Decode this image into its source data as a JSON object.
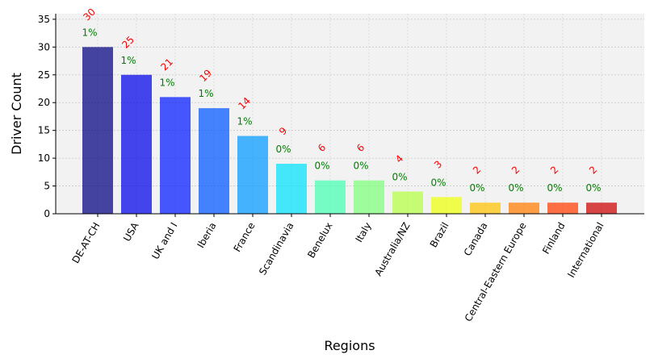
{
  "chart_data": {
    "type": "bar",
    "title": "",
    "xlabel": "Regions",
    "ylabel": "Driver Count",
    "ylim": [
      0,
      36
    ],
    "yticks": [
      0,
      5,
      10,
      15,
      20,
      25,
      30,
      35
    ],
    "grid": true,
    "legend": "none",
    "categories": [
      "DE-AT-CH",
      "USA",
      "UK and I",
      "Iberia",
      "France",
      "Scandinavia",
      "Benelux",
      "Italy",
      "Australia/NZ",
      "Brazil",
      "Canada",
      "Central-Eastern Europe",
      "Finland",
      "International"
    ],
    "values": [
      30,
      25,
      21,
      19,
      14,
      9,
      6,
      6,
      4,
      3,
      2,
      2,
      2,
      2
    ],
    "value_labels": [
      "30",
      "25",
      "21",
      "19",
      "14",
      "9",
      "6",
      "6",
      "4",
      "3",
      "2",
      "2",
      "2",
      "2"
    ],
    "percent_labels": [
      "1%",
      "1%",
      "1%",
      "1%",
      "1%",
      "0%",
      "0%",
      "0%",
      "0%",
      "0%",
      "0%",
      "0%",
      "0%",
      "0%"
    ],
    "bar_colors": [
      "#00007f",
      "#0000ea",
      "#0019ff",
      "#0055ff",
      "#0099ff",
      "#00e0fb",
      "#44ffb2",
      "#7dff7a",
      "#b3ff43",
      "#eeff08",
      "#ffc200",
      "#ff7c00",
      "#ff3a00",
      "#ca0000"
    ],
    "bar_opacity": 0.72,
    "value_label_color": "#ff0000",
    "percent_label_color": "#008000",
    "plot_background": "#f2f2f2",
    "grid_color": "#c8c8c8"
  }
}
